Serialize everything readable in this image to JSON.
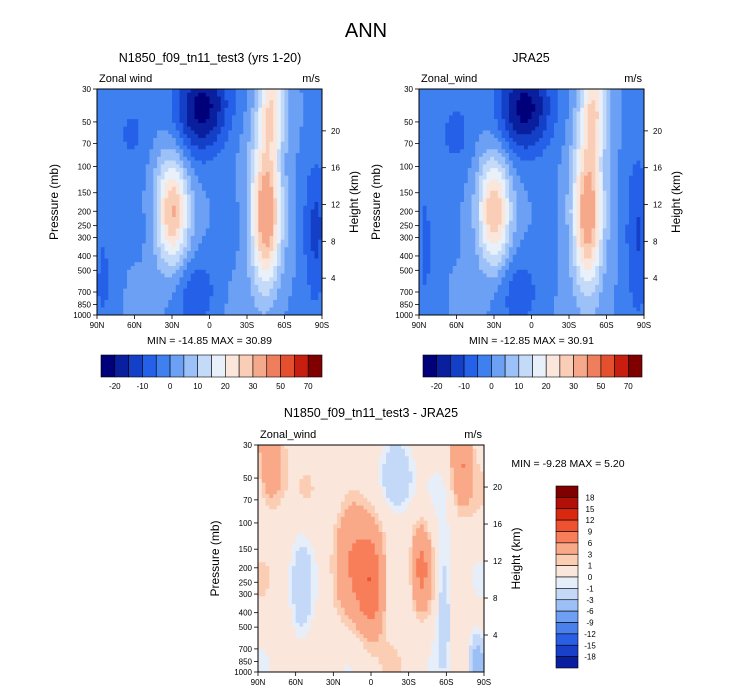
{
  "figure": {
    "title": "ANN"
  },
  "y_axis": {
    "left_label": "Pressure (mb)",
    "right_label": "Height (km)",
    "pressure_ticks": [
      30,
      50,
      70,
      100,
      150,
      200,
      250,
      300,
      400,
      500,
      700,
      850,
      1000
    ],
    "height_ticks": [
      4,
      8,
      12,
      16,
      20
    ]
  },
  "x_axis": {
    "ticks": [
      "90N",
      "60N",
      "30N",
      "0",
      "30S",
      "60S",
      "90S"
    ]
  },
  "colors": {
    "abs_levels": [
      -20,
      -10,
      0,
      10,
      20,
      30,
      50,
      70
    ],
    "abs_palette": [
      "#00007a",
      "#0a1f9e",
      "#1440c8",
      "#2560e8",
      "#3f80f0",
      "#6ca0f5",
      "#9cc0f8",
      "#c4daf9",
      "#e8f0fa",
      "#fbe6dc",
      "#f9cdb6",
      "#f5a88a",
      "#ee7e5c",
      "#e4502e",
      "#c81e10",
      "#800000"
    ],
    "diff_levels": [
      18,
      15,
      12,
      9,
      6,
      3,
      1,
      0,
      -1,
      -3,
      -6,
      -9,
      -12,
      -15,
      -18
    ],
    "diff_palette": [
      "#800000",
      "#b01008",
      "#d82810",
      "#ef5230",
      "#f77e58",
      "#f9a888",
      "#fbcdb3",
      "#fbe6dc",
      "#e6eef9",
      "#c4d8f8",
      "#9cbff5",
      "#6f9ff2",
      "#4a7fec",
      "#2a5ee4",
      "#1840c8",
      "#0a1f9e"
    ]
  },
  "panels": [
    {
      "id": "model",
      "title": "N1850_f09_tn11_test3 (yrs 1-20)",
      "field_label": "Zonal wind",
      "units": "m/s",
      "stats": "MIN = -14.85  MAX =  30.89"
    },
    {
      "id": "obs",
      "title": "JRA25",
      "field_label": "Zonal_wind",
      "units": "m/s",
      "stats": "MIN = -12.85  MAX =  30.91"
    },
    {
      "id": "diff",
      "title": "N1850_f09_tn11_test3 - JRA25",
      "field_label": "Zonal_wind",
      "units": "m/s",
      "stats": "MIN =  -9.28  MAX =   5.20"
    }
  ],
  "chart_data": [
    {
      "type": "heatmap",
      "title": "N1850_f09_tn11_test3 (yrs 1-20)",
      "variable": "Zonal wind",
      "units": "m/s",
      "xlabel": "",
      "ylabel": "Pressure (mb)",
      "y2label": "Height (km)",
      "x_categories": [
        "90N",
        "60N",
        "30N",
        "0",
        "30S",
        "60S",
        "90S"
      ],
      "y_range_mb": [
        30,
        1000
      ],
      "min": -14.85,
      "max": 30.89,
      "features": [
        {
          "kind": "jet",
          "lat": 30,
          "pressure_mb": 200,
          "peak": 25
        },
        {
          "kind": "jet",
          "lat": -45,
          "pressure_mb": 200,
          "peak": 30
        },
        {
          "kind": "easterly",
          "lat": 5,
          "pressure_mb": 40,
          "peak": -15
        }
      ],
      "colorbar_ticks": [
        "-20",
        "-10",
        "0",
        "10",
        "20",
        "30",
        "50",
        "70"
      ]
    },
    {
      "type": "heatmap",
      "title": "JRA25",
      "variable": "Zonal_wind",
      "units": "m/s",
      "xlabel": "",
      "ylabel": "Pressure (mb)",
      "y2label": "Height (km)",
      "x_categories": [
        "90N",
        "60N",
        "30N",
        "0",
        "30S",
        "60S",
        "90S"
      ],
      "y_range_mb": [
        30,
        1000
      ],
      "min": -12.85,
      "max": 30.91,
      "features": [
        {
          "kind": "jet",
          "lat": 30,
          "pressure_mb": 200,
          "peak": 25
        },
        {
          "kind": "jet",
          "lat": -45,
          "pressure_mb": 200,
          "peak": 30
        },
        {
          "kind": "easterly",
          "lat": 5,
          "pressure_mb": 40,
          "peak": -13
        }
      ],
      "colorbar_ticks": [
        "-20",
        "-10",
        "0",
        "10",
        "20",
        "30",
        "50",
        "70"
      ]
    },
    {
      "type": "heatmap",
      "title": "N1850_f09_tn11_test3 - JRA25",
      "variable": "Zonal_wind",
      "units": "m/s",
      "xlabel": "",
      "ylabel": "Pressure (mb)",
      "y2label": "Height (km)",
      "x_categories": [
        "90N",
        "60N",
        "30N",
        "0",
        "30S",
        "60S",
        "90S"
      ],
      "y_range_mb": [
        30,
        1000
      ],
      "min": -9.28,
      "max": 5.2,
      "colorbar_ticks": [
        "18",
        "15",
        "12",
        "9",
        "6",
        "3",
        "1",
        "0",
        "-1",
        "-3",
        "-6",
        "-9",
        "-12",
        "-15",
        "-18"
      ]
    }
  ]
}
